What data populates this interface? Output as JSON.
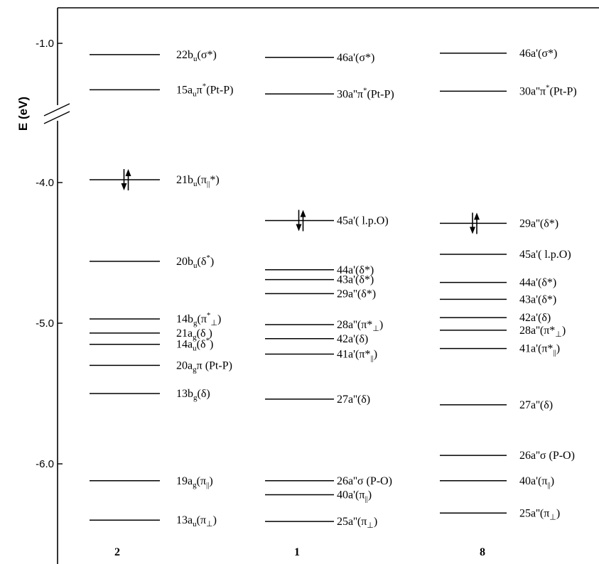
{
  "chart_data": {
    "type": "energy-level diagram",
    "ylabel": "E (eV)",
    "ylim": [
      -6.6,
      -0.75
    ],
    "yticks": [
      {
        "value": -1.0,
        "label": "-1.0"
      },
      {
        "value": -4.0,
        "label": "-4.0"
      },
      {
        "value": -5.0,
        "label": "-5.0"
      },
      {
        "value": -6.0,
        "label": "-6.0"
      }
    ],
    "axis_break_between": [
      -1.0,
      -4.0
    ],
    "columns": [
      {
        "name": "2",
        "levels": [
          {
            "E": -1.08,
            "parts": [
              {
                "t": "22b"
              },
              {
                "t": "u",
                "s": "sub"
              },
              {
                "t": "(σ*)"
              }
            ]
          },
          {
            "E": -1.33,
            "parts": [
              {
                "t": "15a"
              },
              {
                "t": "u",
                "s": "sub"
              },
              {
                "t": "π"
              },
              {
                "t": "*",
                "s": "sup"
              },
              {
                "t": "(Pt-P)"
              }
            ]
          },
          {
            "E": -3.98,
            "occupied": true,
            "parts": [
              {
                "t": "21b"
              },
              {
                "t": "u",
                "s": "sub"
              },
              {
                "t": "(π"
              },
              {
                "t": "||",
                "s": "sub"
              },
              {
                "t": "*)"
              }
            ]
          },
          {
            "E": -4.56,
            "parts": [
              {
                "t": "20b"
              },
              {
                "t": "u",
                "s": "sub"
              },
              {
                "t": "(δ"
              },
              {
                "t": "*",
                "s": "sup"
              },
              {
                "t": ")"
              }
            ]
          },
          {
            "E": -4.97,
            "parts": [
              {
                "t": "14b"
              },
              {
                "t": "g",
                "s": "sub"
              },
              {
                "t": "(π"
              },
              {
                "t": "*",
                "s": "sup"
              },
              {
                "t": "⊥",
                "s": "sub"
              },
              {
                "t": ")"
              }
            ]
          },
          {
            "E": -5.07,
            "parts": [
              {
                "t": "21a"
              },
              {
                "t": "g",
                "s": "sub"
              },
              {
                "t": "(δ )"
              }
            ]
          },
          {
            "E": -5.15,
            "parts": [
              {
                "t": "14a"
              },
              {
                "t": "u",
                "s": "sub"
              },
              {
                "t": "(δ"
              },
              {
                "t": "*",
                "s": "sup"
              },
              {
                "t": ")"
              }
            ]
          },
          {
            "E": -5.3,
            "parts": [
              {
                "t": "20a"
              },
              {
                "t": "g",
                "s": "sub"
              },
              {
                "t": "π (Pt-P)"
              }
            ]
          },
          {
            "E": -5.5,
            "parts": [
              {
                "t": "13b"
              },
              {
                "t": "g",
                "s": "sub"
              },
              {
                "t": "(δ)"
              }
            ]
          },
          {
            "E": -6.12,
            "parts": [
              {
                "t": "19a"
              },
              {
                "t": "g",
                "s": "sub"
              },
              {
                "t": "(π"
              },
              {
                "t": "||",
                "s": "sub"
              },
              {
                "t": ")"
              }
            ]
          },
          {
            "E": -6.4,
            "parts": [
              {
                "t": "13a"
              },
              {
                "t": "u",
                "s": "sub"
              },
              {
                "t": "(π"
              },
              {
                "t": "⊥",
                "s": "sub"
              },
              {
                "t": ")"
              }
            ]
          }
        ]
      },
      {
        "name": "1",
        "levels": [
          {
            "E": -1.1,
            "parts": [
              {
                "t": "46a'(σ*)"
              }
            ]
          },
          {
            "E": -1.36,
            "parts": [
              {
                "t": "30a''π"
              },
              {
                "t": "*",
                "s": "sup"
              },
              {
                "t": "(Pt-P)"
              }
            ]
          },
          {
            "E": -4.27,
            "occupied": true,
            "parts": [
              {
                "t": "45a'( l.p.O)"
              }
            ]
          },
          {
            "E": -4.62,
            "parts": [
              {
                "t": "44a'(δ*)"
              }
            ]
          },
          {
            "E": -4.69,
            "parts": [
              {
                "t": "43a'(δ*)"
              }
            ]
          },
          {
            "E": -4.79,
            "parts": [
              {
                "t": "29a''(δ*)"
              }
            ]
          },
          {
            "E": -5.01,
            "parts": [
              {
                "t": "28a''(π*"
              },
              {
                "t": "⊥",
                "s": "sub"
              },
              {
                "t": ")"
              }
            ]
          },
          {
            "E": -5.11,
            "parts": [
              {
                "t": "42a'(δ)"
              }
            ]
          },
          {
            "E": -5.22,
            "parts": [
              {
                "t": "41a'(π*"
              },
              {
                "t": "||",
                "s": "sub"
              },
              {
                "t": ")"
              }
            ]
          },
          {
            "E": -5.54,
            "parts": [
              {
                "t": "27a''(δ)"
              }
            ]
          },
          {
            "E": -6.12,
            "parts": [
              {
                "t": "26a''σ (P-O)"
              }
            ]
          },
          {
            "E": -6.22,
            "parts": [
              {
                "t": "40a'(π"
              },
              {
                "t": "||",
                "s": "sub"
              },
              {
                "t": ")"
              }
            ]
          },
          {
            "E": -6.41,
            "parts": [
              {
                "t": "25a''(π"
              },
              {
                "t": "⊥",
                "s": "sub"
              },
              {
                "t": ")"
              }
            ]
          }
        ]
      },
      {
        "name": "8",
        "levels": [
          {
            "E": -1.07,
            "parts": [
              {
                "t": "46a'(σ*)"
              }
            ]
          },
          {
            "E": -1.34,
            "parts": [
              {
                "t": "30a''π"
              },
              {
                "t": "*",
                "s": "sup"
              },
              {
                "t": "(Pt-P)"
              }
            ]
          },
          {
            "E": -4.29,
            "occupied": true,
            "parts": [
              {
                "t": "29a''(δ*)"
              }
            ]
          },
          {
            "E": -4.51,
            "parts": [
              {
                "t": "45a'( l.p.O)"
              }
            ]
          },
          {
            "E": -4.71,
            "parts": [
              {
                "t": "44a'(δ*)"
              }
            ]
          },
          {
            "E": -4.83,
            "parts": [
              {
                "t": "43a'(δ*)"
              }
            ]
          },
          {
            "E": -4.96,
            "parts": [
              {
                "t": "42a'(δ)"
              }
            ]
          },
          {
            "E": -5.05,
            "parts": [
              {
                "t": "28a''(π*"
              },
              {
                "t": "⊥",
                "s": "sub"
              },
              {
                "t": ")"
              }
            ]
          },
          {
            "E": -5.18,
            "parts": [
              {
                "t": "41a'(π*"
              },
              {
                "t": "||",
                "s": "sub"
              },
              {
                "t": ")"
              }
            ]
          },
          {
            "E": -5.58,
            "parts": [
              {
                "t": "27a''(δ)"
              }
            ]
          },
          {
            "E": -5.94,
            "parts": [
              {
                "t": "26a''σ (P-O)"
              }
            ]
          },
          {
            "E": -6.12,
            "parts": [
              {
                "t": "40a'(π"
              },
              {
                "t": "||",
                "s": "sub"
              },
              {
                "t": ")"
              }
            ]
          },
          {
            "E": -6.35,
            "parts": [
              {
                "t": "25a''(π"
              },
              {
                "t": "⊥",
                "s": "sub"
              },
              {
                "t": ")"
              }
            ]
          }
        ]
      }
    ]
  }
}
